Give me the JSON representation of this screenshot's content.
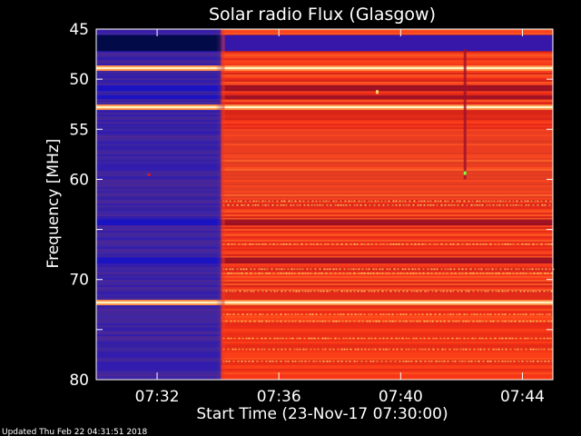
{
  "chart_data": {
    "type": "heatmap",
    "title": "Solar radio Flux (Glasgow)",
    "ylabel": "Frequency [MHz]",
    "xlabel": "Start Time (23-Nov-17 07:30:00)",
    "footer": "Updated Thu Feb 22 04:31:51 2018",
    "y_ticks": [
      "45",
      "50",
      "55",
      "60",
      "65",
      "70",
      "75",
      "80"
    ],
    "y_tick_labels_visible": [
      "45",
      "50",
      "55",
      "60",
      "",
      "70",
      "",
      "80"
    ],
    "ylim": [
      45,
      80
    ],
    "x_ticks": [
      "07:32",
      "07:36",
      "07:40",
      "07:44"
    ],
    "x_tick_minutes": [
      2,
      6,
      10,
      14
    ],
    "xlim_minutes": [
      0,
      15
    ],
    "transition_minute": 4.1,
    "colormap": [
      "#1a0fa8",
      "#4a2a9a",
      "#c81a1a",
      "#ff4a1a",
      "#ffe27a"
    ],
    "grid": false,
    "bright_lines_mhz": [
      48.9,
      52.8,
      72.3
    ],
    "dark_bands_mhz": [
      [
        45.6,
        47.2
      ],
      [
        50.6,
        51.2
      ],
      [
        51.6,
        52.0
      ],
      [
        64.0,
        64.6
      ],
      [
        67.8,
        68.4
      ]
    ],
    "spike_minute": 12.1
  }
}
